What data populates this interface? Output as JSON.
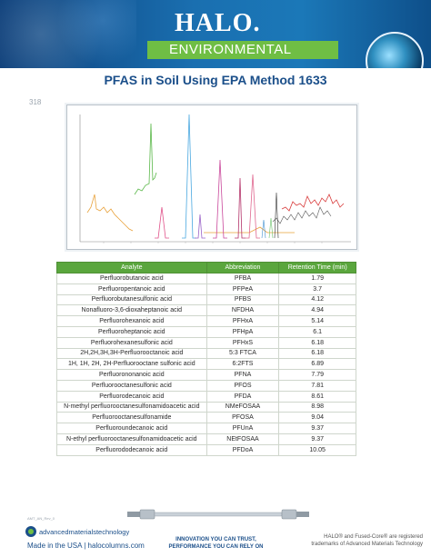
{
  "header": {
    "logo": "HALO.",
    "section": "ENVIRONMENTAL"
  },
  "title": "PFAS in Soil Using EPA Method 1633",
  "page_number": "318",
  "table": {
    "headers": [
      "Analyte",
      "Abbreviation",
      "Retention Time (min)"
    ],
    "rows": [
      [
        "Perfluorobutanoic acid",
        "PFBA",
        "1.79"
      ],
      [
        "Perfluoropentanoic acid",
        "PFPeA",
        "3.7"
      ],
      [
        "Perfluorobutanesulfonic acid",
        "PFBS",
        "4.12"
      ],
      [
        "Nonafluoro-3,6-dioxaheptanoic acid",
        "NFDHA",
        "4.94"
      ],
      [
        "Perfluorohexanoic acid",
        "PFHxA",
        "5.14"
      ],
      [
        "Perfluoroheptanoic acid",
        "PFHpA",
        "6.1"
      ],
      [
        "Perfluorohexanesulfonic acid",
        "PFHxS",
        "6.18"
      ],
      [
        "2H,2H,3H,3H-Perfluorooctanoic acid",
        "5:3 FTCA",
        "6.18"
      ],
      [
        "1H, 1H, 2H, 2H-Perfluorooctane sulfonic acid",
        "6:2FTS",
        "6.89"
      ],
      [
        "Perfluorononanoic acid",
        "PFNA",
        "7.79"
      ],
      [
        "Perfluorooctanesulfonic acid",
        "PFOS",
        "7.81"
      ],
      [
        "Perfluorodecanoic acid",
        "PFDA",
        "8.61"
      ],
      [
        "N-methyl perfluorooctanesulfonamidoacetic acid",
        "NMeFOSAA",
        "8.98"
      ],
      [
        "Perfluorooctanesulfonamide",
        "PFOSA",
        "9.04"
      ],
      [
        "Perfluoroundecanoic acid",
        "PFUnA",
        "9.37"
      ],
      [
        "N-ethyl perfluorooctanesulfonamidoacetic acid",
        "NEtFOSAA",
        "9.37"
      ],
      [
        "Perfluorododecanoic acid",
        "PFDoA",
        "10.05"
      ]
    ]
  },
  "footer": {
    "doc_code": "AMT_AN_Rev_0",
    "company": "advancedmaterialstechnology",
    "made_in": "Made in the USA | halocolumns.com",
    "tagline_1": "INNOVATION YOU CAN TRUST,",
    "tagline_2": "PERFORMANCE YOU CAN RELY ON",
    "trademark_1": "HALO® and Fused-Core® are registered",
    "trademark_2": "trademarks of Advanced Materials Technology"
  },
  "colors": {
    "brand_blue": "#1b4f8a",
    "brand_green": "#5aa63d"
  }
}
